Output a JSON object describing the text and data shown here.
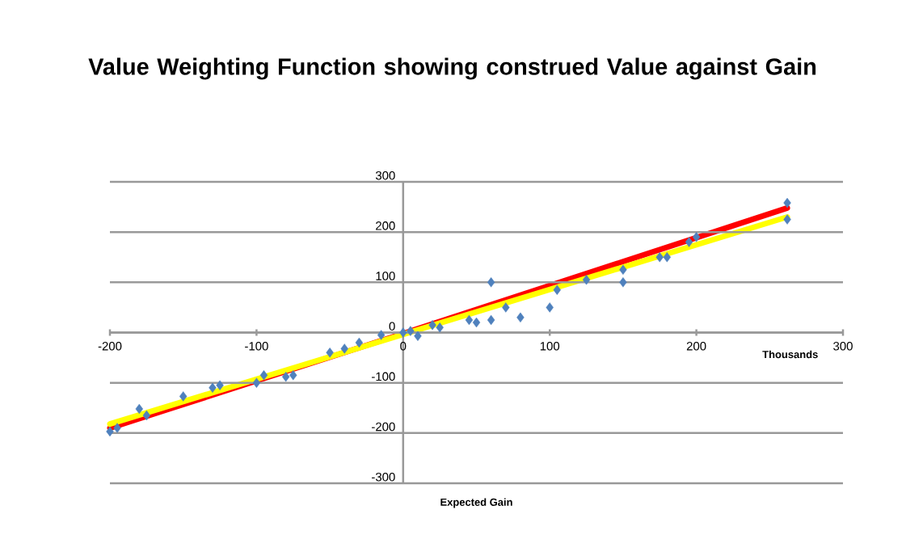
{
  "chart_data": {
    "type": "scatter",
    "title": "Value Weighting Function showing construed Value against Gain",
    "xlabel": "Expected Gain",
    "annotations": [
      "Thousands"
    ],
    "xlim": [
      -200,
      300
    ],
    "xticks": [
      -200,
      -100,
      0,
      100,
      200,
      300
    ],
    "ylim": [
      -300,
      300
    ],
    "yticks": [
      -300,
      -200,
      -100,
      0,
      100,
      200,
      300
    ],
    "grid": "y",
    "marker": "diamond",
    "series": [
      {
        "color": "#4f81bd",
        "x": [
          -200,
          -195,
          -180,
          -175,
          -150,
          -130,
          -125,
          -100,
          -95,
          -80,
          -75,
          -50,
          -40,
          -30,
          -15,
          0,
          5,
          10,
          20,
          25,
          45,
          50,
          60,
          60,
          70,
          80,
          100,
          105,
          125,
          150,
          150,
          175,
          180,
          195,
          200,
          262,
          262
        ],
        "values": [
          -197,
          -190,
          -152,
          -165,
          -127,
          -110,
          -105,
          -100,
          -85,
          -88,
          -85,
          -40,
          -32,
          -20,
          -5,
          0,
          3,
          -7,
          15,
          10,
          25,
          20,
          100,
          25,
          50,
          30,
          50,
          85,
          105,
          100,
          125,
          150,
          150,
          180,
          190,
          258,
          225
        ]
      },
      {
        "type": "line",
        "marker": "none",
        "color": "#ff0000",
        "x": [
          -200,
          0,
          262
        ],
        "values": [
          -190,
          -2,
          248
        ]
      },
      {
        "type": "line",
        "marker": "none",
        "color": "#ffff00",
        "x": [
          -200,
          262
        ],
        "values": [
          -182,
          230
        ]
      }
    ]
  }
}
